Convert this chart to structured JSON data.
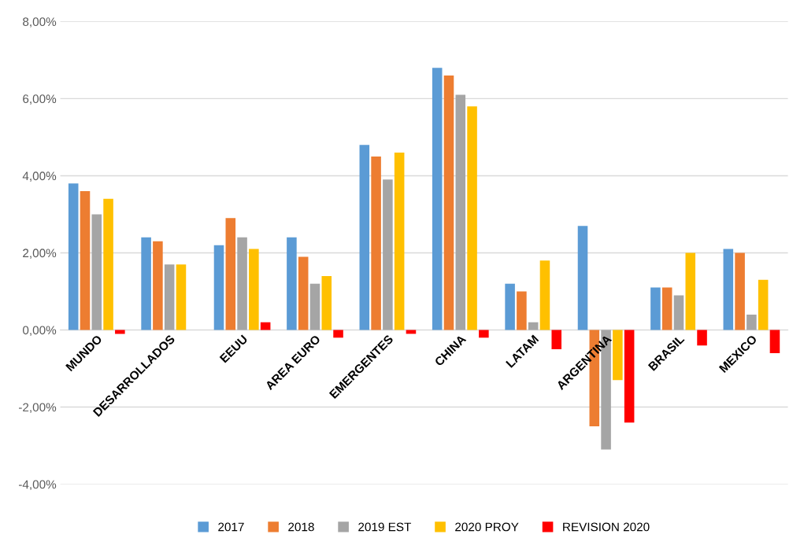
{
  "chart_data": {
    "type": "bar",
    "categories": [
      "MUNDO",
      "DESARROLLADOS",
      "EEUU",
      "AREA EURO",
      "EMERGENTES",
      "CHINA",
      "LATAM",
      "ARGENTINA",
      "BRASIL",
      "MEXICO"
    ],
    "series": [
      {
        "name": "2017",
        "color": "#5b9bd5",
        "values": [
          3.8,
          2.4,
          2.2,
          2.4,
          4.8,
          6.8,
          1.2,
          2.7,
          1.1,
          2.1
        ]
      },
      {
        "name": "2018",
        "color": "#ed7d31",
        "values": [
          3.6,
          2.3,
          2.9,
          1.9,
          4.5,
          6.6,
          1.0,
          -2.5,
          1.1,
          2.0
        ]
      },
      {
        "name": "2019 EST",
        "color": "#a5a5a5",
        "values": [
          3.0,
          1.7,
          2.4,
          1.2,
          3.9,
          6.1,
          0.2,
          -3.1,
          0.9,
          0.4
        ]
      },
      {
        "name": "2020 PROY",
        "color": "#ffc000",
        "values": [
          3.4,
          1.7,
          2.1,
          1.4,
          4.6,
          5.8,
          1.8,
          -1.3,
          2.0,
          1.3
        ]
      },
      {
        "name": "REVISION 2020",
        "color": "#ff0000",
        "values": [
          -0.1,
          0.0,
          0.2,
          -0.2,
          -0.1,
          -0.2,
          -0.5,
          -2.4,
          -0.4,
          -0.6
        ]
      }
    ],
    "ylim": [
      -4,
      8
    ],
    "yticks": [
      {
        "value": -4,
        "label": "-4,00%"
      },
      {
        "value": -2,
        "label": "-2,00%"
      },
      {
        "value": 0,
        "label": "0,00%"
      },
      {
        "value": 2,
        "label": "2,00%"
      },
      {
        "value": 4,
        "label": "4,00%"
      },
      {
        "value": 6,
        "label": "6,00%"
      },
      {
        "value": 8,
        "label": "8,00%"
      }
    ],
    "grid": "y",
    "legend": "bottom"
  }
}
